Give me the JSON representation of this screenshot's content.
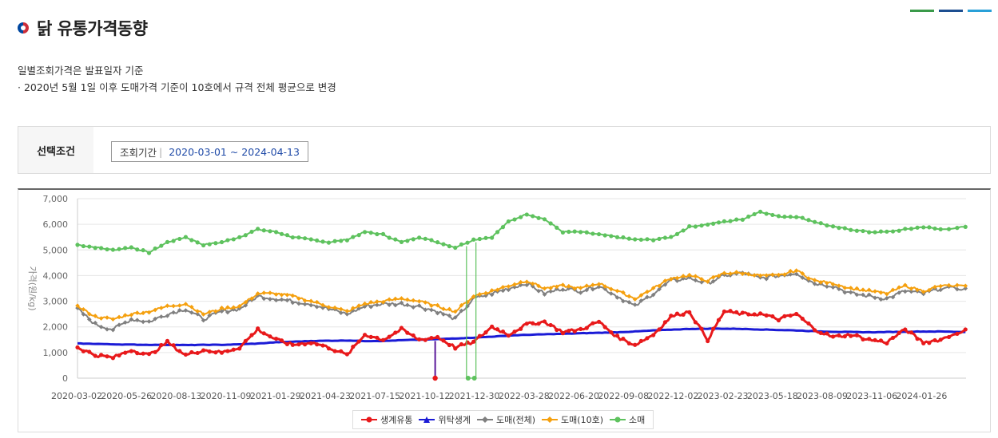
{
  "page": {
    "title": "닭 유통가격동향",
    "note1": "일별조회가격은 발표일자 기준",
    "note2": "· 2020년 5월 1일 이후 도매가격 기준이 10호에서 규격 전체 평균으로 변경"
  },
  "filter": {
    "label": "선택조건",
    "period_label": "조회기간",
    "period_value": "2020-03-01 ~ 2024-04-13"
  },
  "colors": {
    "생계유통": "#e8191b",
    "위탁생계": "#1b1bd6",
    "도매(전체)": "#808080",
    "도매(10호)": "#f5a00e",
    "소매": "#5ec25e"
  },
  "chart_data": {
    "type": "line",
    "ylabel": "가격(원/kg)",
    "ylim": [
      0,
      7000
    ],
    "yticks": [
      0,
      1000,
      2000,
      3000,
      4000,
      5000,
      6000,
      7000
    ],
    "ytick_labels": [
      "0",
      "1,000",
      "2,000",
      "3,000",
      "4,000",
      "5,000",
      "6,000",
      "7,000"
    ],
    "x_ticks": [
      "2020-03-02",
      "2020-05-26",
      "2020-08-13",
      "2020-11-09",
      "2021-01-29",
      "2021-04-23",
      "2021-07-15",
      "2021-10-12",
      "2021-12-30",
      "2022-03-28",
      "2022-06-20",
      "2022-09-08",
      "2022-12-02",
      "2023-02-23",
      "2023-05-18",
      "2023-08-09",
      "2023-11-06",
      "2024-01-26"
    ],
    "grid": true,
    "legend_position": "bottom",
    "x_dates": [
      "2020-03-02",
      "2020-04-01",
      "2020-05-01",
      "2020-06-01",
      "2020-07-01",
      "2020-08-01",
      "2020-09-01",
      "2020-10-01",
      "2020-11-01",
      "2020-12-01",
      "2021-01-01",
      "2021-02-01",
      "2021-03-01",
      "2021-04-01",
      "2021-05-01",
      "2021-06-01",
      "2021-07-01",
      "2021-08-01",
      "2021-09-01",
      "2021-10-01",
      "2021-11-01",
      "2021-12-01",
      "2022-01-01",
      "2022-02-01",
      "2022-03-01",
      "2022-04-01",
      "2022-05-01",
      "2022-06-01",
      "2022-07-01",
      "2022-08-01",
      "2022-09-01",
      "2022-10-01",
      "2022-11-01",
      "2022-12-01",
      "2023-01-01",
      "2023-02-01",
      "2023-03-01",
      "2023-04-01",
      "2023-05-01",
      "2023-06-01",
      "2023-07-01",
      "2023-08-01",
      "2023-09-01",
      "2023-10-01",
      "2023-11-01",
      "2023-12-01",
      "2024-01-01",
      "2024-02-01",
      "2024-03-01",
      "2024-04-12"
    ],
    "series": [
      {
        "name": "생계유통",
        "values": [
          1200,
          900,
          800,
          1100,
          900,
          1400,
          900,
          1100,
          1000,
          1200,
          1900,
          1500,
          1300,
          1400,
          1200,
          900,
          1700,
          1500,
          1900,
          1500,
          1600,
          1200,
          1400,
          2000,
          1700,
          2100,
          2200,
          1800,
          1900,
          2200,
          1600,
          1300,
          1700,
          2400,
          2600,
          1500,
          2600,
          2500,
          2500,
          2300,
          2500,
          1900,
          1600,
          1700,
          1500,
          1400,
          1900,
          1400,
          1500,
          1900
        ]
      },
      {
        "name": "위탁생계",
        "values": [
          1350,
          1340,
          1320,
          1310,
          1300,
          1300,
          1290,
          1300,
          1300,
          1320,
          1350,
          1400,
          1420,
          1450,
          1460,
          1470,
          1450,
          1450,
          1480,
          1500,
          1520,
          1550,
          1580,
          1620,
          1660,
          1690,
          1710,
          1730,
          1750,
          1770,
          1790,
          1820,
          1860,
          1890,
          1920,
          1930,
          1930,
          1920,
          1900,
          1880,
          1860,
          1830,
          1810,
          1800,
          1790,
          1800,
          1810,
          1820,
          1820,
          1800
        ]
      },
      {
        "name": "도매(전체)",
        "values": [
          2700,
          2100,
          1900,
          2300,
          2200,
          2500,
          2700,
          2300,
          2600,
          2700,
          3200,
          3100,
          3000,
          2900,
          2700,
          2500,
          2800,
          2900,
          2900,
          2800,
          2600,
          2300,
          3100,
          3300,
          3500,
          3700,
          3300,
          3500,
          3400,
          3600,
          3200,
          2800,
          3300,
          3800,
          3900,
          3700,
          4000,
          4100,
          3900,
          4000,
          4100,
          3700,
          3600,
          3300,
          3200,
          3100,
          3400,
          3300,
          3500,
          3500
        ]
      },
      {
        "name": "도매(10호)",
        "values": [
          2800,
          2400,
          2300,
          2500,
          2600,
          2800,
          2900,
          2500,
          2700,
          2800,
          3300,
          3300,
          3200,
          3000,
          2800,
          2600,
          2900,
          3000,
          3100,
          3000,
          2800,
          2600,
          3200,
          3400,
          3600,
          3800,
          3500,
          3600,
          3500,
          3700,
          3400,
          3100,
          3500,
          3900,
          4000,
          3800,
          4100,
          4100,
          4000,
          4000,
          4200,
          3800,
          3700,
          3500,
          3400,
          3300,
          3600,
          3400,
          3600,
          3600
        ]
      },
      {
        "name": "소매",
        "values": [
          5200,
          5100,
          5000,
          5100,
          4900,
          5300,
          5500,
          5200,
          5300,
          5500,
          5800,
          5700,
          5500,
          5400,
          5300,
          5400,
          5700,
          5600,
          5300,
          5500,
          5300,
          5100,
          5400,
          5500,
          6100,
          6400,
          6200,
          5700,
          5700,
          5600,
          5500,
          5400,
          5400,
          5500,
          5900,
          6000,
          6100,
          6200,
          6500,
          6300,
          6300,
          6100,
          5900,
          5800,
          5700,
          5700,
          5800,
          5900,
          5800,
          5900
        ]
      }
    ],
    "gaps": [
      {
        "series": "소매",
        "from": "2021-12-20",
        "to": "2022-01-05",
        "value": 0
      },
      {
        "series": "생계유통",
        "at": "2021-10-28",
        "value": 0
      },
      {
        "series": "위탁생계",
        "at": "2021-10-28",
        "value": 0
      }
    ]
  }
}
